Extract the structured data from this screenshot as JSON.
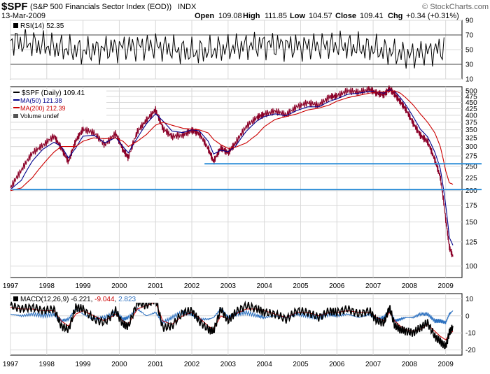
{
  "header": {
    "symbol": "$SPF",
    "name": "(S&P 500 Financials Sector Index (EOD))",
    "exchange": "INDX",
    "date": "13-Mar-2009",
    "open_label": "Open",
    "open": "109.08",
    "high_label": "High",
    "high": "111.85",
    "low_label": "Low",
    "low": "104.57",
    "close_label": "Close",
    "close": "109.41",
    "chg_label": "Chg",
    "chg": "+0.34 (+0.31%)",
    "watermark": "© StockCharts.com"
  },
  "colors": {
    "price": "#8b0028",
    "ma50": "#00008b",
    "ma200": "#cc0000",
    "trendline": "#2f8fd8",
    "rsi": "#000000",
    "macd": "#000000",
    "signal": "#cc0000",
    "histogram": "#2a6fbf",
    "grid": "#d8d8d8",
    "panel_border": "#000000"
  },
  "chart_data": [
    {
      "type": "line",
      "panel": "rsi",
      "label": "RSI(14) 52.35",
      "ylim": [
        10,
        90
      ],
      "yticks": [
        10,
        30,
        50,
        70,
        90
      ],
      "reference_lines": [
        30,
        70
      ],
      "x": [
        "1997",
        "1998",
        "1999",
        "2000",
        "2001",
        "2002",
        "2003",
        "2004",
        "2005",
        "2006",
        "2007",
        "2008",
        "2009"
      ],
      "series": [
        {
          "name": "RSI(14)",
          "values": [
            62,
            55,
            48,
            53,
            55,
            46,
            52,
            57,
            54,
            56,
            51,
            42,
            52
          ]
        }
      ]
    },
    {
      "type": "line",
      "panel": "price",
      "y_scale": "log",
      "ylim": [
        90,
        520
      ],
      "yticks": [
        100,
        125,
        150,
        175,
        200,
        225,
        250,
        275,
        300,
        325,
        350,
        375,
        400,
        425,
        450,
        475,
        500
      ],
      "legend": [
        {
          "key": "price",
          "text": "$SPF (Daily) 109.41"
        },
        {
          "key": "ma50",
          "text": "MA(50) 121.38"
        },
        {
          "key": "ma200",
          "text": "MA(200) 212.39"
        },
        {
          "key": "volume",
          "text": "Volume undef"
        }
      ],
      "x": [
        1997.0,
        1997.3,
        1997.6,
        1997.9,
        1998.2,
        1998.4,
        1998.6,
        1998.8,
        1999.0,
        1999.3,
        1999.6,
        1999.9,
        2000.1,
        2000.25,
        2000.5,
        2000.75,
        2001.0,
        2001.2,
        2001.45,
        2001.75,
        2002.0,
        2002.2,
        2002.45,
        2002.6,
        2002.8,
        2003.0,
        2003.2,
        2003.5,
        2003.8,
        2004.0,
        2004.3,
        2004.6,
        2004.9,
        2005.2,
        2005.5,
        2005.8,
        2006.0,
        2006.3,
        2006.6,
        2006.9,
        2007.1,
        2007.3,
        2007.45,
        2007.6,
        2007.75,
        2007.9,
        2008.1,
        2008.3,
        2008.5,
        2008.7,
        2008.85,
        2009.0,
        2009.1,
        2009.2
      ],
      "series": [
        {
          "name": "$SPF (Daily)",
          "values": [
            205,
            240,
            280,
            300,
            325,
            290,
            255,
            310,
            345,
            335,
            300,
            335,
            290,
            270,
            345,
            385,
            425,
            360,
            335,
            340,
            355,
            345,
            300,
            265,
            300,
            285,
            310,
            360,
            390,
            400,
            410,
            395,
            425,
            440,
            430,
            465,
            470,
            495,
            490,
            505,
            490,
            485,
            515,
            490,
            460,
            430,
            380,
            340,
            320,
            270,
            230,
            155,
            120,
            109
          ]
        },
        {
          "name": "MA(50)",
          "values": [
            202,
            220,
            262,
            293,
            312,
            300,
            270,
            296,
            330,
            333,
            310,
            326,
            300,
            283,
            325,
            370,
            405,
            380,
            346,
            341,
            350,
            347,
            315,
            280,
            290,
            286,
            300,
            345,
            380,
            395,
            405,
            398,
            418,
            432,
            432,
            455,
            465,
            485,
            490,
            498,
            495,
            490,
            505,
            498,
            470,
            440,
            395,
            352,
            328,
            285,
            245,
            175,
            130,
            121
          ]
        },
        {
          "name": "MA(200)",
          "values": [
            200,
            205,
            225,
            255,
            285,
            300,
            300,
            300,
            315,
            325,
            322,
            325,
            315,
            300,
            315,
            335,
            365,
            375,
            365,
            355,
            352,
            350,
            340,
            320,
            305,
            295,
            298,
            310,
            335,
            360,
            385,
            395,
            405,
            420,
            427,
            440,
            455,
            470,
            480,
            490,
            495,
            495,
            500,
            500,
            490,
            470,
            440,
            405,
            375,
            340,
            300,
            240,
            215,
            212
          ]
        }
      ],
      "trendlines": [
        {
          "from": [
            2002.35,
            256
          ],
          "to": [
            2009.45,
            256
          ]
        },
        {
          "from": [
            1997.05,
            202
          ],
          "to": [
            2009.45,
            202
          ]
        }
      ]
    },
    {
      "type": "line",
      "panel": "macd",
      "label": "MACD(12,26,9) -6.221, -9.044, 2.823",
      "label_parts": [
        "MACD(12,26,9) -6.221, ",
        "-9.044",
        ", ",
        "2.823"
      ],
      "ylim": [
        -23,
        13
      ],
      "yticks": [
        -20,
        -10,
        0,
        10
      ],
      "x": [
        1997.0,
        1997.3,
        1997.6,
        1997.9,
        1998.2,
        1998.4,
        1998.6,
        1998.8,
        1999.0,
        1999.3,
        1999.6,
        1999.9,
        2000.1,
        2000.25,
        2000.5,
        2000.75,
        2001.0,
        2001.2,
        2001.45,
        2001.75,
        2002.0,
        2002.2,
        2002.45,
        2002.6,
        2002.8,
        2003.0,
        2003.2,
        2003.5,
        2003.8,
        2004.0,
        2004.3,
        2004.6,
        2004.9,
        2005.2,
        2005.5,
        2005.8,
        2006.0,
        2006.3,
        2006.6,
        2006.9,
        2007.1,
        2007.3,
        2007.45,
        2007.6,
        2007.75,
        2007.9,
        2008.1,
        2008.3,
        2008.5,
        2008.7,
        2008.85,
        2009.0,
        2009.1,
        2009.2
      ],
      "series": [
        {
          "name": "MACD",
          "values": [
            6,
            4,
            5,
            3,
            4,
            -6,
            -8,
            5,
            4,
            -2,
            -4,
            3,
            -5,
            -6,
            8,
            6,
            10,
            -7,
            -6,
            2,
            3,
            -3,
            -8,
            -9,
            4,
            -3,
            2,
            6,
            4,
            2,
            1,
            -2,
            3,
            2,
            -1,
            3,
            2,
            4,
            1,
            3,
            -3,
            -4,
            5,
            -6,
            -8,
            -9,
            -10,
            -7,
            -4,
            -12,
            -15,
            -18,
            -10,
            -6
          ]
        },
        {
          "name": "Signal",
          "values": [
            5,
            4,
            4,
            3,
            3,
            -3,
            -6,
            1,
            3,
            0,
            -3,
            1,
            -3,
            -5,
            4,
            6,
            8,
            -3,
            -5,
            0,
            2,
            -1,
            -6,
            -8,
            0,
            -2,
            1,
            4,
            4,
            3,
            1,
            -1,
            2,
            2,
            0,
            2,
            2,
            3,
            2,
            2,
            -1,
            -3,
            2,
            -3,
            -6,
            -8,
            -9,
            -8,
            -5,
            -9,
            -12,
            -14,
            -11,
            -9
          ]
        },
        {
          "name": "Histogram",
          "values": [
            1,
            0,
            1,
            0,
            1,
            -3,
            -2,
            4,
            1,
            -2,
            -1,
            2,
            -2,
            -1,
            4,
            0,
            2,
            -4,
            -1,
            2,
            1,
            -2,
            -2,
            -1,
            4,
            -1,
            1,
            2,
            0,
            -1,
            0,
            -1,
            1,
            0,
            -1,
            1,
            0,
            1,
            -1,
            1,
            -2,
            -1,
            3,
            -3,
            -2,
            -1,
            -1,
            1,
            1,
            -3,
            -3,
            -4,
            1,
            3
          ]
        }
      ]
    }
  ],
  "x_axis": {
    "labels": [
      "1997",
      "1998",
      "1999",
      "2000",
      "2001",
      "2002",
      "2003",
      "2004",
      "2005",
      "2006",
      "2007",
      "2008",
      "2009"
    ]
  }
}
